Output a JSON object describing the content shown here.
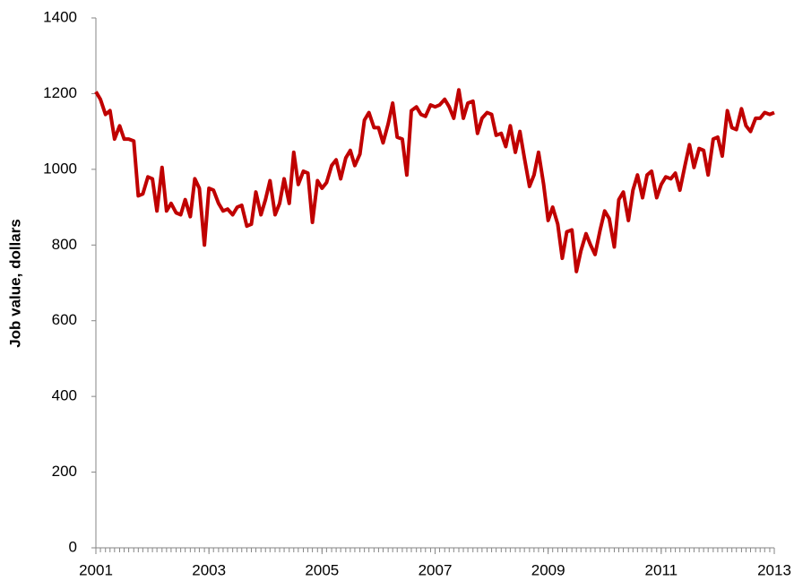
{
  "chart_data": {
    "type": "line",
    "y_label": "Job value, dollars",
    "xlim": [
      2001,
      2013
    ],
    "xticks": [
      2001,
      2003,
      2005,
      2007,
      2009,
      2011,
      2013
    ],
    "ylim": [
      0,
      1400
    ],
    "yticks": [
      0,
      200,
      400,
      600,
      800,
      1000,
      1200,
      1400
    ],
    "grid": false,
    "x": [
      2001,
      2001.08,
      2001.17,
      2001.25,
      2001.33,
      2001.42,
      2001.5,
      2001.58,
      2001.67,
      2001.75,
      2001.83,
      2001.92,
      2002,
      2002.08,
      2002.17,
      2002.25,
      2002.33,
      2002.42,
      2002.5,
      2002.58,
      2002.67,
      2002.75,
      2002.83,
      2002.92,
      2003,
      2003.08,
      2003.17,
      2003.25,
      2003.33,
      2003.42,
      2003.5,
      2003.58,
      2003.67,
      2003.75,
      2003.83,
      2003.92,
      2004,
      2004.08,
      2004.17,
      2004.25,
      2004.33,
      2004.42,
      2004.5,
      2004.58,
      2004.67,
      2004.75,
      2004.83,
      2004.92,
      2005,
      2005.08,
      2005.17,
      2005.25,
      2005.33,
      2005.42,
      2005.5,
      2005.58,
      2005.67,
      2005.75,
      2005.83,
      2005.92,
      2006,
      2006.08,
      2006.17,
      2006.25,
      2006.33,
      2006.42,
      2006.5,
      2006.58,
      2006.67,
      2006.75,
      2006.83,
      2006.92,
      2007,
      2007.08,
      2007.17,
      2007.25,
      2007.33,
      2007.42,
      2007.5,
      2007.58,
      2007.67,
      2007.75,
      2007.83,
      2007.92,
      2008,
      2008.08,
      2008.17,
      2008.25,
      2008.33,
      2008.42,
      2008.5,
      2008.58,
      2008.67,
      2008.75,
      2008.83,
      2008.92,
      2009,
      2009.08,
      2009.17,
      2009.25,
      2009.33,
      2009.42,
      2009.5,
      2009.58,
      2009.67,
      2009.75,
      2009.83,
      2009.92,
      2010,
      2010.08,
      2010.17,
      2010.25,
      2010.33,
      2010.42,
      2010.5,
      2010.58,
      2010.67,
      2010.75,
      2010.83,
      2010.92,
      2011,
      2011.08,
      2011.17,
      2011.25,
      2011.33,
      2011.42,
      2011.5,
      2011.58,
      2011.67,
      2011.75,
      2011.83,
      2011.92,
      2012,
      2012.08,
      2012.17,
      2012.25,
      2012.33,
      2012.42,
      2012.5,
      2012.58,
      2012.67,
      2012.75,
      2012.83,
      2012.92,
      2013
    ],
    "series": [
      {
        "color": "#c00000",
        "values": [
          1205,
          1185,
          1145,
          1155,
          1080,
          1115,
          1080,
          1080,
          1075,
          930,
          935,
          980,
          975,
          890,
          1005,
          890,
          910,
          885,
          880,
          920,
          875,
          975,
          950,
          800,
          950,
          945,
          910,
          890,
          895,
          880,
          900,
          905,
          850,
          855,
          940,
          880,
          920,
          970,
          880,
          910,
          975,
          910,
          1045,
          960,
          995,
          990,
          860,
          970,
          950,
          965,
          1010,
          1025,
          975,
          1030,
          1050,
          1010,
          1040,
          1130,
          1150,
          1110,
          1110,
          1070,
          1120,
          1175,
          1085,
          1080,
          985,
          1155,
          1165,
          1145,
          1140,
          1170,
          1165,
          1170,
          1185,
          1165,
          1135,
          1210,
          1135,
          1175,
          1180,
          1095,
          1135,
          1150,
          1145,
          1090,
          1095,
          1060,
          1115,
          1045,
          1100,
          1030,
          955,
          985,
          1045,
          960,
          865,
          900,
          855,
          765,
          835,
          840,
          730,
          785,
          830,
          800,
          775,
          840,
          890,
          870,
          795,
          920,
          940,
          865,
          945,
          985,
          925,
          985,
          995,
          925,
          960,
          980,
          975,
          990,
          945,
          1010,
          1065,
          1005,
          1055,
          1050,
          985,
          1080,
          1085,
          1035,
          1155,
          1110,
          1105,
          1160,
          1115,
          1100,
          1135,
          1135,
          1150,
          1145,
          1150
        ]
      }
    ]
  }
}
